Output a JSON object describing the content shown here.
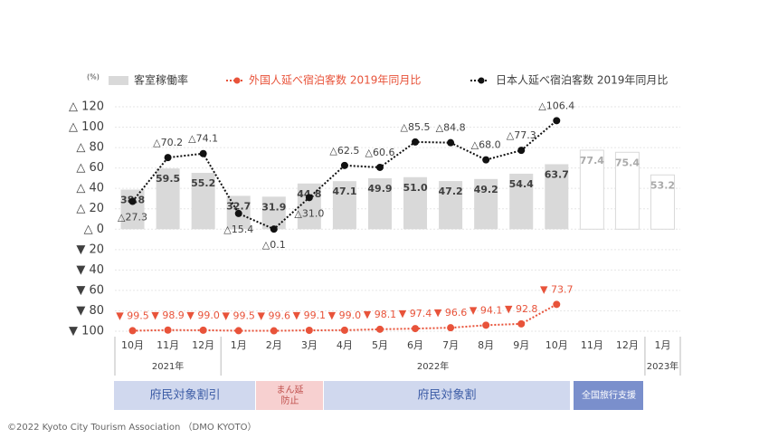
{
  "chart_data": {
    "type": "bar-line",
    "unit_label": "(%)",
    "categories": [
      "10月",
      "11月",
      "12月",
      "1月",
      "2月",
      "3月",
      "4月",
      "5月",
      "6月",
      "7月",
      "8月",
      "9月",
      "10月",
      "11月",
      "12月",
      "1月"
    ],
    "years": [
      {
        "label": "2021年",
        "span": 3
      },
      {
        "label": "2022年",
        "span": 12
      },
      {
        "label": "2023年",
        "span": 1
      }
    ],
    "ylim": [
      -100,
      120
    ],
    "yticks": [
      {
        "value": 120,
        "label": "△ 120"
      },
      {
        "value": 100,
        "label": "△ 100"
      },
      {
        "value": 80,
        "label": "△ 80"
      },
      {
        "value": 60,
        "label": "△ 60"
      },
      {
        "value": 40,
        "label": "△ 40"
      },
      {
        "value": 20,
        "label": "△ 20"
      },
      {
        "value": 0,
        "label": "△ 0"
      },
      {
        "value": -20,
        "label": "▼ 20"
      },
      {
        "value": -40,
        "label": "▼ 40"
      },
      {
        "value": -60,
        "label": "▼ 60"
      },
      {
        "value": -80,
        "label": "▼ 80"
      },
      {
        "value": -100,
        "label": "▼ 100"
      }
    ],
    "grid": true,
    "series": [
      {
        "name": "客室稼働率",
        "kind": "bar",
        "color": "#d9d9d9",
        "values": [
          38.8,
          59.5,
          55.2,
          32.7,
          31.9,
          44.8,
          47.1,
          49.9,
          51.0,
          47.2,
          49.2,
          54.4,
          63.7,
          77.4,
          75.4,
          53.2
        ],
        "value_labels": [
          "38.8",
          "59.5",
          "55.2",
          "32.7",
          "31.9",
          "44.8",
          "47.1",
          "49.9",
          "51.0",
          "47.2",
          "49.2",
          "54.4",
          "63.7",
          "77.4",
          "75.4",
          "53.2"
        ],
        "outlined": [
          false,
          false,
          false,
          false,
          false,
          false,
          false,
          false,
          false,
          false,
          false,
          false,
          false,
          true,
          true,
          true
        ]
      },
      {
        "name": "外国人延べ宿泊客数 2019年同月比",
        "kind": "line",
        "color": "#e8533a",
        "dash": true,
        "values": [
          -99.5,
          -98.9,
          -99.0,
          -99.5,
          -99.6,
          -99.1,
          -99.0,
          -98.1,
          -97.4,
          -96.6,
          -94.1,
          -92.8,
          -73.7,
          null,
          null,
          null
        ],
        "value_labels": [
          "▼ 99.5",
          "▼ 98.9",
          "▼ 99.0",
          "▼ 99.5",
          "▼ 99.6",
          "▼ 99.1",
          "▼ 99.0",
          "▼ 98.1",
          "▼ 97.4",
          "▼ 96.6",
          "▼ 94.1",
          "▼ 92.8",
          "▼ 73.7",
          null,
          null,
          null
        ]
      },
      {
        "name": "日本人延べ宿泊客数 2019年同月比",
        "kind": "line",
        "color": "#111111",
        "dash": true,
        "values": [
          27.3,
          70.2,
          74.1,
          15.4,
          0.1,
          31.0,
          62.5,
          60.6,
          85.5,
          84.8,
          68.0,
          77.3,
          106.4,
          null,
          null,
          null
        ],
        "value_labels": [
          "△27.3",
          "△70.2",
          "△74.1",
          "△15.4",
          "△0.1",
          "△31.0",
          "△62.5",
          "△60.6",
          "△85.5",
          "△84.8",
          "△68.0",
          "△77.3",
          "△106.4",
          null,
          null,
          null
        ]
      }
    ],
    "periods": [
      {
        "label": "府民対象割引",
        "color": "#d0d8ee"
      },
      {
        "label": "まん延\n防止",
        "color": "#f7d0d0"
      },
      {
        "label": "府民対象割",
        "color": "#d0d8ee"
      },
      {
        "label": "全国旅行支援",
        "color": "#7a8fcc"
      }
    ],
    "footer": "©2022 Kyoto City Tourism Association （DMO KYOTO）"
  }
}
